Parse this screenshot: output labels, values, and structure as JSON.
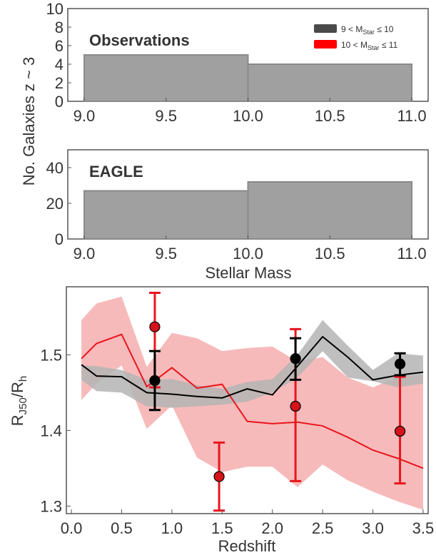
{
  "figure": {
    "ylabel_shared": "No. Galaxies  z ~ 3",
    "legend": [
      {
        "prefix": "9 < M",
        "sub": "Star",
        "suffix": " ≤ 10",
        "color": "#4a4a4a"
      },
      {
        "prefix": "10 < M",
        "sub": "Star",
        "suffix": " ≤ 11",
        "color": "#ff0000"
      }
    ]
  },
  "chart_data": [
    {
      "type": "bar",
      "panel_label": "Observations",
      "bins": [
        [
          9.0,
          10.0
        ],
        [
          10.0,
          11.0
        ]
      ],
      "values": [
        5,
        4
      ],
      "xlim": [
        8.9,
        11.1
      ],
      "ylim": [
        0,
        10
      ],
      "xticks": [
        "9.0",
        "9.5",
        "10.0",
        "10.5",
        "11.0"
      ],
      "yticks": [
        "0",
        "2",
        "4",
        "6",
        "8",
        "10"
      ],
      "color": "#a0a0a0"
    },
    {
      "type": "bar",
      "panel_label": "EAGLE",
      "bins": [
        [
          9.0,
          10.0
        ],
        [
          10.0,
          11.0
        ]
      ],
      "values": [
        27,
        32
      ],
      "xlim": [
        8.9,
        11.1
      ],
      "ylim": [
        0,
        50
      ],
      "xticks": [
        "9.0",
        "9.5",
        "10.0",
        "10.5",
        "11.0"
      ],
      "yticks": [
        "0",
        "20",
        "40"
      ],
      "xlabel": "Stellar Mass",
      "color": "#a0a0a0"
    },
    {
      "type": "line",
      "xlabel": "Redshift",
      "ylabel_main": "R",
      "ylabel_sub": "J50",
      "ylabel_rest": "/R",
      "ylabel_sub2": "h",
      "xlim": [
        -0.05,
        3.55
      ],
      "ylim": [
        1.29,
        1.59
      ],
      "xticks": [
        "0.0",
        "0.5",
        "1.0",
        "1.5",
        "2.0",
        "2.5",
        "3.0",
        "3.5"
      ],
      "yticks": [
        "1.3",
        "1.4",
        "1.5"
      ],
      "series": [
        {
          "color": "#000000",
          "band_color": "#b4b4b4",
          "x": [
            0.1,
            0.25,
            0.5,
            0.75,
            1.0,
            1.25,
            1.5,
            1.75,
            2.0,
            2.25,
            2.5,
            2.75,
            3.0,
            3.25,
            3.5
          ],
          "line": [
            1.487,
            1.472,
            1.471,
            1.45,
            1.448,
            1.445,
            1.443,
            1.455,
            1.447,
            1.485,
            1.524,
            1.497,
            1.467,
            1.473,
            1.477
          ],
          "lower": [
            1.467,
            1.452,
            1.45,
            1.432,
            1.43,
            1.432,
            1.434,
            1.438,
            1.45,
            1.47,
            1.505,
            1.47,
            1.465,
            1.457,
            1.462
          ],
          "upper": [
            1.486,
            1.485,
            1.48,
            1.467,
            1.468,
            1.46,
            1.455,
            1.464,
            1.468,
            1.5,
            1.546,
            1.512,
            1.48,
            1.502,
            1.499
          ],
          "points": [
            {
              "x": 0.83,
              "y": 1.466,
              "lo": 1.427,
              "hi": 1.505
            },
            {
              "x": 2.23,
              "y": 1.495,
              "lo": 1.467,
              "hi": 1.522
            },
            {
              "x": 3.27,
              "y": 1.488,
              "lo": 1.473,
              "hi": 1.502
            }
          ]
        },
        {
          "color": "#e8161d",
          "band_color": "#f6b3b3",
          "x": [
            0.1,
            0.25,
            0.5,
            0.75,
            1.0,
            1.25,
            1.5,
            1.75,
            2.0,
            2.25,
            2.5,
            2.75,
            3.0,
            3.25,
            3.5
          ],
          "line": [
            1.495,
            1.515,
            1.527,
            1.458,
            1.483,
            1.456,
            1.461,
            1.412,
            1.409,
            1.411,
            1.406,
            1.391,
            1.374,
            1.363,
            1.35
          ],
          "lower": [
            1.44,
            1.462,
            1.486,
            1.402,
            1.433,
            1.364,
            1.345,
            1.352,
            1.352,
            1.325,
            1.355,
            1.334,
            1.319,
            1.306,
            1.295
          ],
          "upper": [
            1.546,
            1.568,
            1.577,
            1.484,
            1.529,
            1.522,
            1.505,
            1.509,
            1.511,
            1.491,
            1.497,
            1.47,
            1.457,
            1.471,
            1.473
          ],
          "points": [
            {
              "x": 0.83,
              "y": 1.537,
              "lo": 1.457,
              "hi": 1.582
            },
            {
              "x": 1.47,
              "y": 1.339,
              "lo": 1.294,
              "hi": 1.384
            },
            {
              "x": 2.23,
              "y": 1.432,
              "lo": 1.333,
              "hi": 1.534
            },
            {
              "x": 3.27,
              "y": 1.399,
              "lo": 1.33,
              "hi": 1.471
            }
          ]
        }
      ]
    }
  ]
}
